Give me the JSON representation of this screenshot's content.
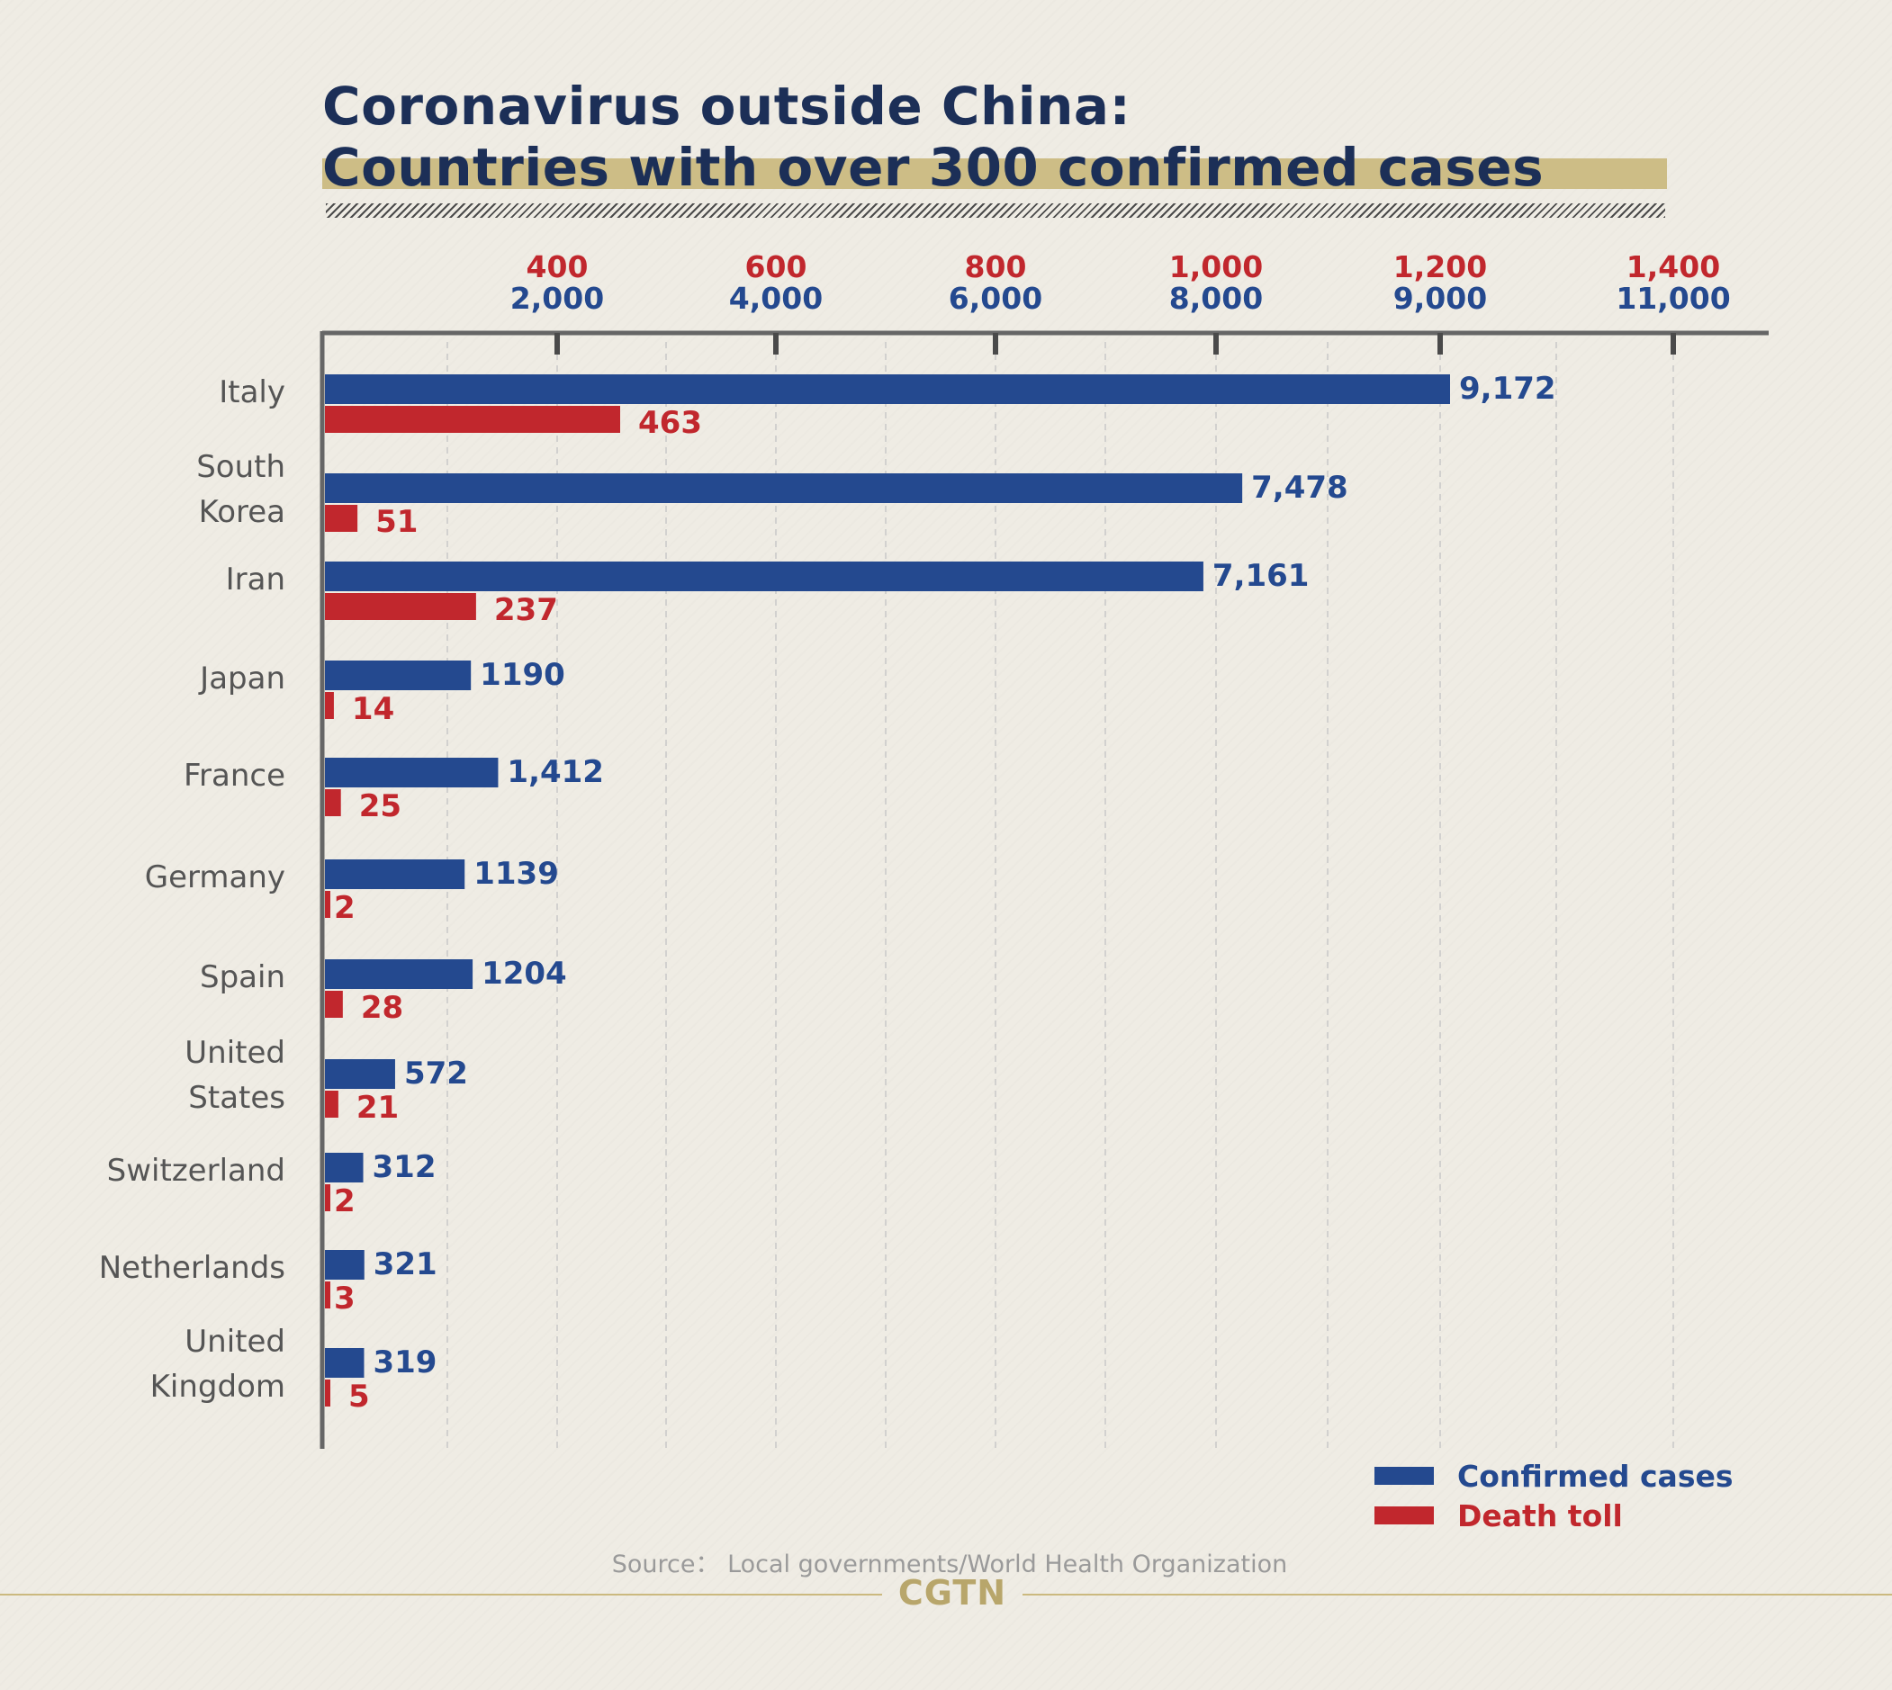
{
  "title": {
    "line1": "Coronavirus outside China:",
    "line2": "Countries with over 300 confirmed cases"
  },
  "colors": {
    "confirmed": "#24498f",
    "death": "#c1272d",
    "title": "#1c2f57",
    "highlight": "#cdbd86",
    "axis": "#666666",
    "grid": "#c8c8c8"
  },
  "chart_data": {
    "type": "bar",
    "orientation": "horizontal",
    "categories": [
      "Italy",
      "South\nKorea",
      "Iran",
      "Japan",
      "France",
      "Germany",
      "Spain",
      "United\nStates",
      "Switzerland",
      "Netherlands",
      "United\nKingdom"
    ],
    "series": [
      {
        "name": "Confirmed cases",
        "values": [
          9172,
          7478,
          7161,
          1190,
          1412,
          1139,
          1204,
          572,
          312,
          321,
          319
        ],
        "labels": [
          "9,172",
          "7,478",
          "7,161",
          "1190",
          "1,412",
          "1139",
          "1204",
          "572",
          "312",
          "321",
          "319"
        ]
      },
      {
        "name": "Death toll",
        "values": [
          463,
          51,
          237,
          14,
          25,
          2,
          28,
          21,
          2,
          3,
          5
        ],
        "labels": [
          "463",
          "51",
          "237",
          "14",
          "25",
          "2",
          "28",
          "21",
          "2",
          "3",
          "5"
        ]
      }
    ],
    "top_axis_ticks": [
      "400",
      "600",
      "800",
      "1,000",
      "1,200",
      "1,400"
    ],
    "bottom_axis_ticks": [
      "2,000",
      "4,000",
      "6,000",
      "8,000",
      "9,000",
      "11,000"
    ],
    "legend": "bottom-right",
    "grid": true
  },
  "source": "Source： Local governments/World Health Organization",
  "brand": "CGTN"
}
